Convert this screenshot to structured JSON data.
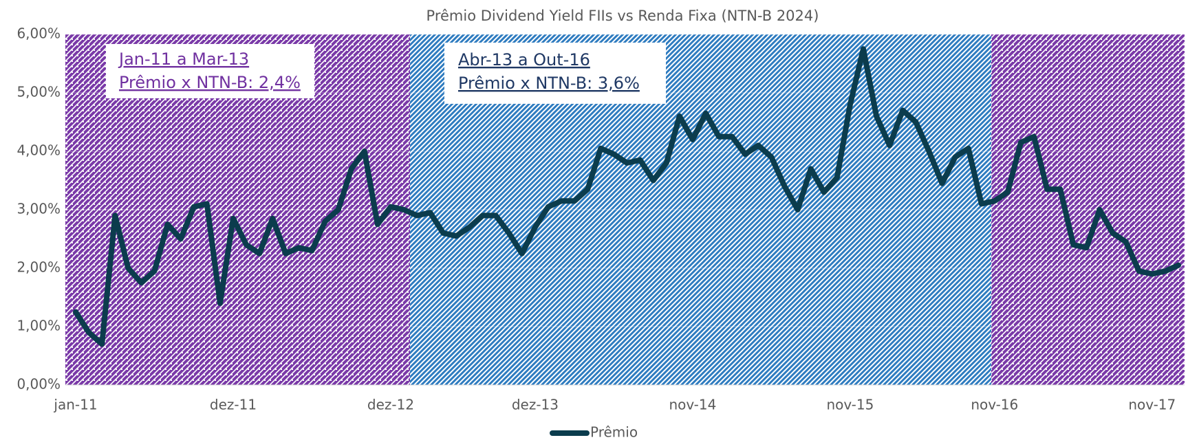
{
  "chart_data": {
    "type": "line",
    "title": "Prêmio Dividend Yield FIIs vs Renda Fixa (NTN-B 2024)",
    "categories": [
      "jan-11",
      null,
      null,
      null,
      null,
      null,
      null,
      null,
      null,
      null,
      null,
      null,
      "dez-11",
      null,
      null,
      null,
      null,
      null,
      null,
      null,
      null,
      null,
      null,
      null,
      "dez-12",
      null,
      null,
      null,
      null,
      null,
      null,
      null,
      null,
      null,
      null,
      "dez-13",
      null,
      null,
      null,
      null,
      null,
      null,
      null,
      null,
      null,
      null,
      null,
      "nov-14",
      null,
      null,
      null,
      null,
      null,
      null,
      null,
      null,
      null,
      null,
      null,
      "nov-15",
      null,
      null,
      null,
      null,
      null,
      null,
      null,
      null,
      null,
      null,
      "nov-16",
      null,
      null,
      null,
      null,
      null,
      null,
      null,
      null,
      null,
      null,
      null,
      "nov-17",
      null,
      null
    ],
    "series": [
      {
        "name": "Prêmio",
        "color": "#0b3c4d",
        "values": [
          1.25,
          0.9,
          0.7,
          2.9,
          2.0,
          1.75,
          1.95,
          2.75,
          2.5,
          3.05,
          3.1,
          1.4,
          2.85,
          2.4,
          2.25,
          2.85,
          2.25,
          2.35,
          2.3,
          2.8,
          3.0,
          3.7,
          4.0,
          2.75,
          3.05,
          3.0,
          2.9,
          2.95,
          2.6,
          2.55,
          2.7,
          2.9,
          2.9,
          2.6,
          2.25,
          2.7,
          3.05,
          3.15,
          3.15,
          3.35,
          4.05,
          3.95,
          3.8,
          3.85,
          3.5,
          3.8,
          4.6,
          4.2,
          4.65,
          4.25,
          4.25,
          3.95,
          4.1,
          3.9,
          3.4,
          3.0,
          3.7,
          3.3,
          3.55,
          4.8,
          5.75,
          4.6,
          4.1,
          4.7,
          4.5,
          4.0,
          3.45,
          3.9,
          4.05,
          3.1,
          3.15,
          3.3,
          4.15,
          4.25,
          3.35,
          3.35,
          2.4,
          2.35,
          3.0,
          2.6,
          2.45,
          1.95,
          1.9,
          1.95,
          2.05
        ]
      }
    ],
    "ylim": [
      0,
      6
    ],
    "yticks": [
      {
        "value": 0,
        "label": "0,00%"
      },
      {
        "value": 1,
        "label": "1,00%"
      },
      {
        "value": 2,
        "label": "2,00%"
      },
      {
        "value": 3,
        "label": "3,00%"
      },
      {
        "value": 4,
        "label": "4,00%"
      },
      {
        "value": 5,
        "label": "5,00%"
      },
      {
        "value": 6,
        "label": "6,00%"
      }
    ],
    "grid": true,
    "legend": "bottom",
    "annotations": [
      {
        "lines": [
          "Jan-11 a Mar-13",
          "Prêmio x NTN-B: 2,4%"
        ],
        "color": "#7030a0"
      },
      {
        "lines": [
          "Abr-13 a Out-16",
          "Prêmio x NTN-B: 3,6%"
        ],
        "color": "#1f3864"
      }
    ]
  }
}
